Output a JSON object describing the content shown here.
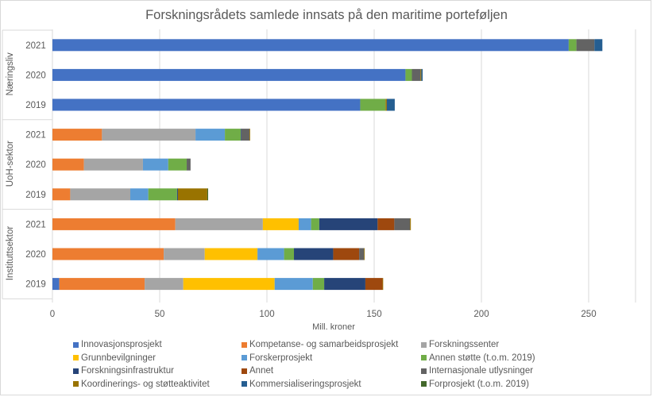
{
  "chart_data": {
    "type": "bar",
    "orientation": "horizontal",
    "stacked": true,
    "title": "Forskningsrådets samlede innsats på den maritime porteføljen",
    "xlabel": "Mill. kroner",
    "ylabel": "",
    "xlim": [
      0,
      270
    ],
    "xticks": [
      0,
      50,
      100,
      150,
      200,
      250
    ],
    "grid": true,
    "legend_position": "bottom",
    "groups": [
      {
        "name": "Næringsliv",
        "categories": [
          "2021",
          "2020",
          "2019"
        ]
      },
      {
        "name": "UoH-sektor",
        "categories": [
          "2021",
          "2020",
          "2019"
        ]
      },
      {
        "name": "Instituttsektor",
        "categories": [
          "2021",
          "2020",
          "2019"
        ]
      }
    ],
    "categories": [
      "Næringsliv 2021",
      "Næringsliv 2020",
      "Næringsliv 2019",
      "UoH-sektor 2021",
      "UoH-sektor 2020",
      "UoH-sektor 2019",
      "Instituttsektor 2021",
      "Instituttsektor 2020",
      "Instituttsektor 2019"
    ],
    "series": [
      {
        "name": "Innovasjonsprosjekt",
        "color": "#4472c4",
        "values": [
          240.7,
          164.6,
          143.5,
          0,
          0,
          0,
          0,
          0,
          3.2
        ]
      },
      {
        "name": "Kompetanse- og samarbeidsprosjekt",
        "color": "#ed7d31",
        "values": [
          0,
          0,
          0,
          23.1,
          14.7,
          8.3,
          57.3,
          51.9,
          39.8
        ]
      },
      {
        "name": "Forskningssenter",
        "color": "#a5a5a5",
        "values": [
          0,
          0,
          0,
          43.6,
          27.5,
          28.0,
          40.8,
          19.1,
          18.0
        ]
      },
      {
        "name": "Grunnbevilgninger",
        "color": "#ffc000",
        "values": [
          0,
          0,
          0,
          0,
          0,
          0,
          16.7,
          24.6,
          42.6
        ]
      },
      {
        "name": "Forskerprosjekt",
        "color": "#5b9bd5",
        "values": [
          0,
          0,
          0,
          13.7,
          11.8,
          8.4,
          5.8,
          12.4,
          17.8
        ]
      },
      {
        "name": "Annen støtte (t.o.m. 2019)",
        "color": "#70ad47",
        "values": [
          3.6,
          3.0,
          11.8,
          7.4,
          8.6,
          13.4,
          3.8,
          4.6,
          5.3
        ]
      },
      {
        "name": "Forskningsinfrastruktur",
        "color": "#264478",
        "values": [
          0,
          0,
          0,
          0.3,
          0,
          0.4,
          27.2,
          18.3,
          19.2
        ]
      },
      {
        "name": "Annet",
        "color": "#9e480e",
        "values": [
          0,
          0,
          0,
          0,
          0,
          0,
          7.8,
          12.1,
          8.0
        ]
      },
      {
        "name": "Internasjonale utlysninger",
        "color": "#636363",
        "values": [
          8.4,
          4.0,
          0,
          3.8,
          1.8,
          0,
          7.3,
          2.3,
          0
        ]
      },
      {
        "name": "Koordinerings- og støtteaktivitet",
        "color": "#997300",
        "values": [
          0,
          0.4,
          0.6,
          0.3,
          0,
          13.7,
          0.4,
          0.3,
          0.3
        ]
      },
      {
        "name": "Kommersialiseringsprosjekt",
        "color": "#255e91",
        "values": [
          3.7,
          0.6,
          3.7,
          0,
          0,
          0,
          0,
          0,
          0
        ]
      },
      {
        "name": "Forprosjekt (t.o.m. 2019)",
        "color": "#43682b",
        "values": [
          0,
          0,
          0,
          0,
          0,
          0.4,
          0,
          0,
          0
        ]
      }
    ]
  }
}
